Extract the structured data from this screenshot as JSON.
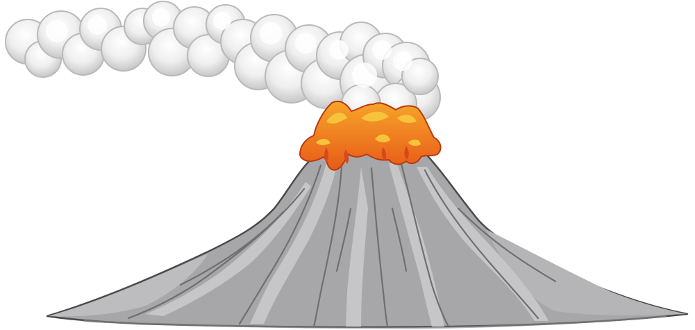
{
  "scene": {
    "subject": "volcano-icon",
    "colors": {
      "background": "#ffffff",
      "outline": "#4a4a4a",
      "rock": "#a7a7a9",
      "rock_light": "#c4c4c6",
      "rock_dark": "#8b8b8d",
      "smoke": "#eeeeee",
      "smoke_shadow": "#c9c9c9",
      "lava": "#f08a1c",
      "lava_dark": "#e2551a",
      "lava_light": "#f7c33a"
    }
  }
}
